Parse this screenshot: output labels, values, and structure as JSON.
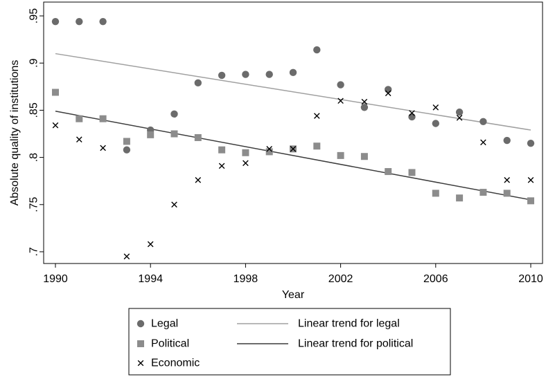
{
  "chart_data": {
    "type": "scatter",
    "xlabel": "Year",
    "ylabel": "Absolute quality of institutions",
    "xlim": [
      1990,
      2010
    ],
    "ylim": [
      0.7,
      0.95
    ],
    "xticks": [
      1990,
      1994,
      1998,
      2002,
      2006,
      2010
    ],
    "xtick_labels": [
      "1990",
      "1994",
      "1998",
      "2002",
      "2006",
      "2010"
    ],
    "yticks": [
      0.7,
      0.75,
      0.8,
      0.85,
      0.9,
      0.95
    ],
    "ytick_labels": [
      ".7",
      ".75",
      ".8",
      ".85",
      ".9",
      ".95"
    ],
    "grid": false,
    "legend_position": "bottom",
    "x": [
      1990,
      1991,
      1992,
      1993,
      1994,
      1995,
      1996,
      1997,
      1998,
      1999,
      2000,
      2001,
      2002,
      2003,
      2004,
      2005,
      2006,
      2007,
      2008,
      2009,
      2010
    ],
    "series": [
      {
        "name": "Legal",
        "marker": "circle",
        "color": "#6b6b6b",
        "values": [
          0.944,
          0.944,
          0.944,
          0.808,
          0.829,
          0.846,
          0.879,
          0.887,
          0.888,
          0.888,
          0.89,
          0.914,
          0.877,
          0.853,
          0.872,
          0.843,
          0.836,
          0.848,
          0.838,
          0.818,
          0.815
        ]
      },
      {
        "name": "Political",
        "marker": "square",
        "color": "#8c8c8c",
        "values": [
          0.869,
          0.841,
          0.841,
          0.817,
          0.824,
          0.825,
          0.821,
          0.808,
          0.805,
          0.806,
          0.809,
          0.812,
          0.802,
          0.801,
          0.785,
          0.784,
          0.762,
          0.757,
          0.763,
          0.762,
          0.754
        ]
      },
      {
        "name": "Economic",
        "marker": "x",
        "color": "#000000",
        "values": [
          0.834,
          0.819,
          0.81,
          0.695,
          0.708,
          0.75,
          0.776,
          0.791,
          0.794,
          0.809,
          0.809,
          0.844,
          0.86,
          0.859,
          0.868,
          0.847,
          0.853,
          0.842,
          0.816,
          0.776,
          0.776
        ]
      }
    ],
    "trend_lines": [
      {
        "name": "Linear trend for legal",
        "color": "#a0a0a0",
        "x": [
          1990,
          2010
        ],
        "y": [
          0.91,
          0.829
        ]
      },
      {
        "name": "Linear trend for political",
        "color": "#3c3c3c",
        "x": [
          1990,
          2010
        ],
        "y": [
          0.849,
          0.755
        ]
      }
    ]
  }
}
